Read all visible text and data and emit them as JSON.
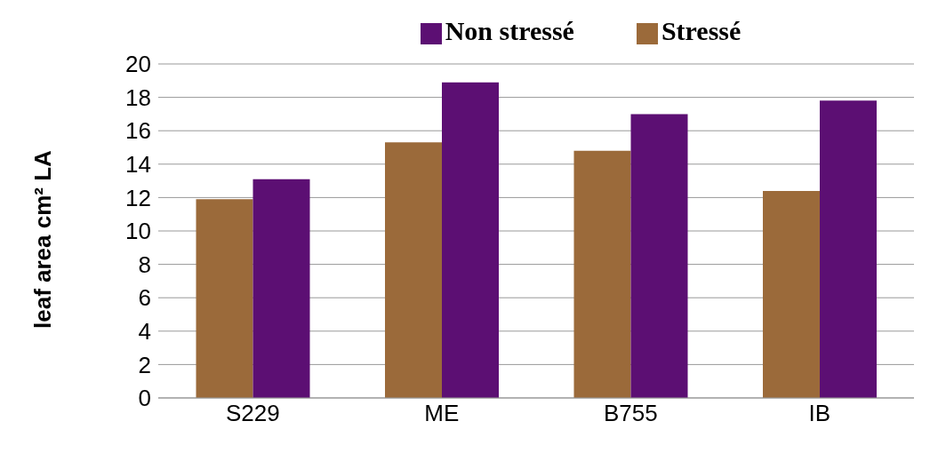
{
  "chart_data": {
    "type": "bar",
    "ylabel": "leaf area cm² LA",
    "categories": [
      "S229",
      "ME",
      "B755",
      "IB"
    ],
    "series": [
      {
        "name": "Stressé",
        "color": "#9b6a3a",
        "values": [
          11.9,
          15.3,
          14.8,
          12.4
        ]
      },
      {
        "name": "Non stressé",
        "color": "#5c0f73",
        "values": [
          13.1,
          18.9,
          17.0,
          17.8
        ]
      }
    ],
    "ylim": [
      0,
      20
    ],
    "yticks": [
      0,
      2,
      4,
      6,
      8,
      10,
      12,
      14,
      16,
      18,
      20
    ],
    "grid": "y",
    "legend": "top"
  }
}
